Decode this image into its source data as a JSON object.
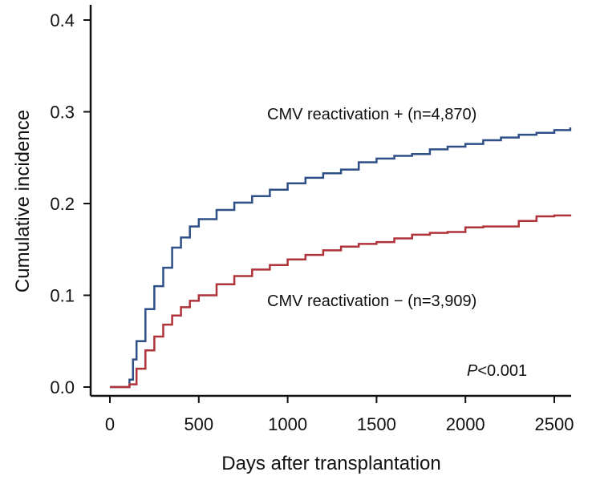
{
  "chart_data": {
    "type": "line",
    "step": true,
    "xlabel": "Days after transplantation",
    "ylabel": "Cumulative incidence",
    "xlim": [
      -100,
      2600
    ],
    "ylim": [
      -0.01,
      0.42
    ],
    "x_ticks": [
      0,
      500,
      1000,
      1500,
      2000,
      2500
    ],
    "y_ticks": [
      0.0,
      0.1,
      0.2,
      0.3,
      0.4
    ],
    "x_tick_labels": [
      "0",
      "500",
      "1000",
      "1500",
      "2000",
      "2500"
    ],
    "y_tick_labels": [
      "0.0",
      "0.1",
      "0.2",
      "0.3",
      "0.4"
    ],
    "annotation": {
      "italic": "P",
      "text": "<0.001"
    },
    "series": [
      {
        "name": "CMV reactivation + (n=4,870)",
        "color": "#2f4f87",
        "points": [
          [
            0,
            0.0
          ],
          [
            100,
            0.0
          ],
          [
            110,
            0.008
          ],
          [
            130,
            0.03
          ],
          [
            150,
            0.05
          ],
          [
            200,
            0.085
          ],
          [
            250,
            0.11
          ],
          [
            300,
            0.13
          ],
          [
            350,
            0.152
          ],
          [
            400,
            0.163
          ],
          [
            450,
            0.175
          ],
          [
            500,
            0.183
          ],
          [
            600,
            0.193
          ],
          [
            700,
            0.201
          ],
          [
            800,
            0.208
          ],
          [
            900,
            0.215
          ],
          [
            1000,
            0.222
          ],
          [
            1100,
            0.228
          ],
          [
            1200,
            0.233
          ],
          [
            1300,
            0.237
          ],
          [
            1400,
            0.245
          ],
          [
            1500,
            0.249
          ],
          [
            1600,
            0.252
          ],
          [
            1700,
            0.254
          ],
          [
            1800,
            0.259
          ],
          [
            1900,
            0.262
          ],
          [
            2000,
            0.265
          ],
          [
            2100,
            0.269
          ],
          [
            2200,
            0.272
          ],
          [
            2300,
            0.275
          ],
          [
            2400,
            0.277
          ],
          [
            2500,
            0.28
          ],
          [
            2590,
            0.283
          ]
        ]
      },
      {
        "name": "CMV reactivation − (n=3,909)",
        "color": "#b0333a",
        "points": [
          [
            0,
            0.0
          ],
          [
            100,
            0.0
          ],
          [
            110,
            0.003
          ],
          [
            150,
            0.02
          ],
          [
            200,
            0.04
          ],
          [
            250,
            0.055
          ],
          [
            300,
            0.068
          ],
          [
            350,
            0.078
          ],
          [
            400,
            0.087
          ],
          [
            450,
            0.094
          ],
          [
            500,
            0.1
          ],
          [
            600,
            0.112
          ],
          [
            700,
            0.121
          ],
          [
            800,
            0.128
          ],
          [
            900,
            0.133
          ],
          [
            1000,
            0.139
          ],
          [
            1100,
            0.144
          ],
          [
            1200,
            0.149
          ],
          [
            1300,
            0.153
          ],
          [
            1400,
            0.156
          ],
          [
            1500,
            0.158
          ],
          [
            1600,
            0.162
          ],
          [
            1700,
            0.166
          ],
          [
            1800,
            0.168
          ],
          [
            1900,
            0.169
          ],
          [
            2000,
            0.174
          ],
          [
            2100,
            0.175
          ],
          [
            2200,
            0.175
          ],
          [
            2300,
            0.181
          ],
          [
            2400,
            0.186
          ],
          [
            2500,
            0.187
          ],
          [
            2590,
            0.188
          ]
        ]
      }
    ]
  }
}
